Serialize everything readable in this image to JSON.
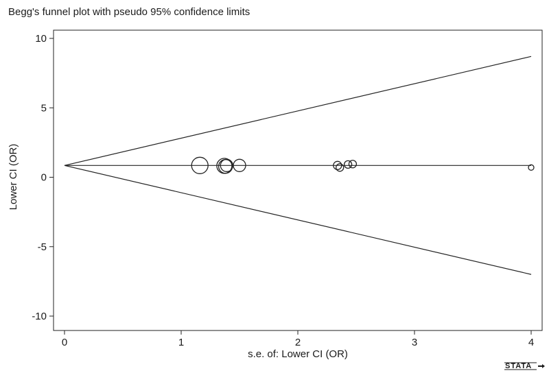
{
  "chart_data": {
    "type": "scatter",
    "title": "Begg's funnel plot with pseudo 95% confidence limits",
    "xlabel": "s.e. of: Lower CI (OR)",
    "ylabel": "Lower CI (OR)",
    "xlim": [
      0,
      4
    ],
    "ylim": [
      -10,
      10
    ],
    "x_ticks": [
      0,
      1,
      2,
      3,
      4
    ],
    "y_ticks": [
      -10,
      -5,
      0,
      5,
      10
    ],
    "grid": false,
    "legend": "none",
    "pooled_estimate": 0.85,
    "funnel_limits": {
      "upper": [
        [
          0,
          0.85
        ],
        [
          4,
          8.7
        ]
      ],
      "lower": [
        [
          0,
          0.85
        ],
        [
          4,
          -7.0
        ]
      ]
    },
    "points": [
      {
        "x": 1.16,
        "y": 0.85,
        "size": 12
      },
      {
        "x": 1.37,
        "y": 0.82,
        "size": 11
      },
      {
        "x": 1.38,
        "y": 0.78,
        "size": 10
      },
      {
        "x": 1.39,
        "y": 0.85,
        "size": 9
      },
      {
        "x": 1.5,
        "y": 0.85,
        "size": 9
      },
      {
        "x": 2.34,
        "y": 0.85,
        "size": 6
      },
      {
        "x": 2.36,
        "y": 0.7,
        "size": 5.5
      },
      {
        "x": 2.43,
        "y": 0.92,
        "size": 5.5
      },
      {
        "x": 2.47,
        "y": 0.95,
        "size": 5.5
      },
      {
        "x": 4.0,
        "y": 0.7,
        "size": 4
      }
    ],
    "watermark": "STATA"
  }
}
